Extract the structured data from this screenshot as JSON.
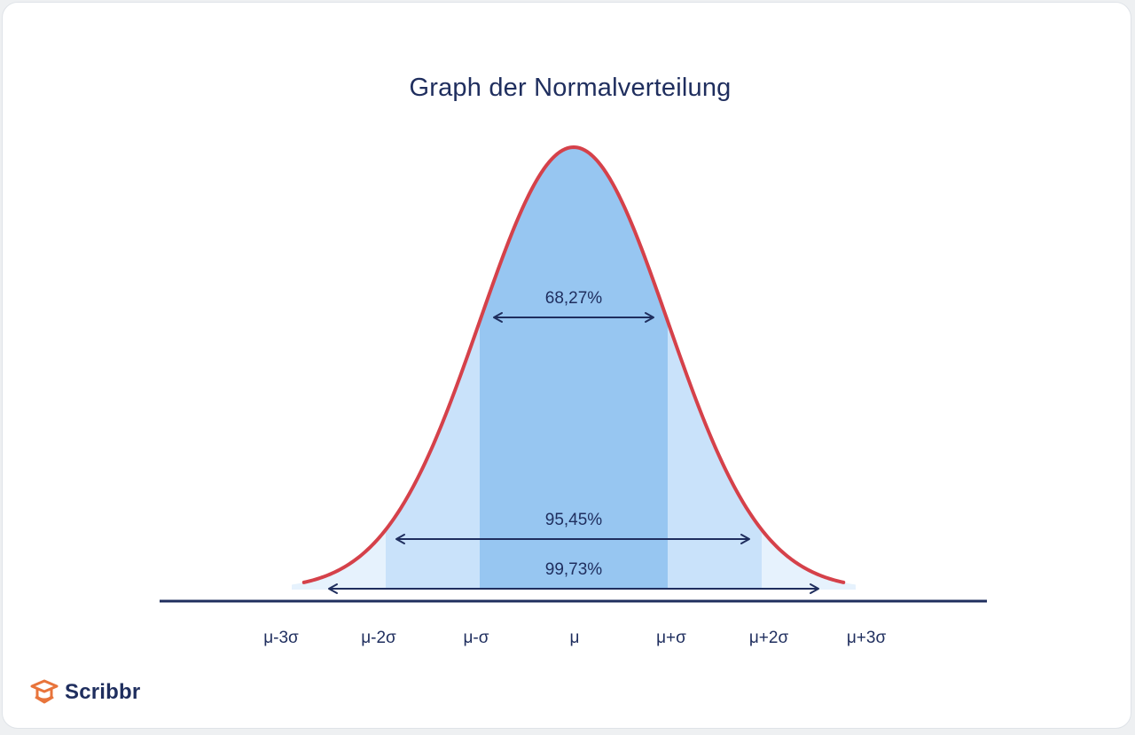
{
  "colors": {
    "curve": "#d5414a",
    "band1": "#97c6f1",
    "band2": "#c9e2fa",
    "band3": "#e6f2fd",
    "axis": "#1f2e5e",
    "text": "#1f2e5e",
    "brand": "#e8743b"
  },
  "chart_data": {
    "type": "area",
    "title": "Graph der Normalverteilung",
    "xlabel": "",
    "ylabel": "",
    "distribution": "normal",
    "xlim": [
      -3.5,
      4.0
    ],
    "x_ticks": [
      {
        "value": -3,
        "label": "μ-3σ"
      },
      {
        "value": -2,
        "label": "μ-2σ"
      },
      {
        "value": -1,
        "label": "μ-σ"
      },
      {
        "value": 0,
        "label": "μ"
      },
      {
        "value": 1,
        "label": "μ+σ"
      },
      {
        "value": 2,
        "label": "μ+2σ"
      },
      {
        "value": 3,
        "label": "μ+3σ"
      }
    ],
    "shaded_bands": [
      {
        "from": -1,
        "to": 1,
        "shade": "dark"
      },
      {
        "from": -2,
        "to": -1,
        "shade": "medium"
      },
      {
        "from": 1,
        "to": 2,
        "shade": "medium"
      },
      {
        "from": -3,
        "to": -2,
        "shade": "light"
      },
      {
        "from": 2,
        "to": 3,
        "shade": "light"
      }
    ],
    "annotations": [
      {
        "label": "68,27%",
        "range": [
          -1,
          1
        ],
        "value": 68.27
      },
      {
        "label": "95,45%",
        "range": [
          -2,
          2
        ],
        "value": 95.45
      },
      {
        "label": "99,73%",
        "range": [
          -3,
          3
        ],
        "value": 99.73
      }
    ],
    "grid": false,
    "legend": "none"
  },
  "logo": {
    "text": "Scribbr",
    "icon": "graduation-cap-icon"
  }
}
